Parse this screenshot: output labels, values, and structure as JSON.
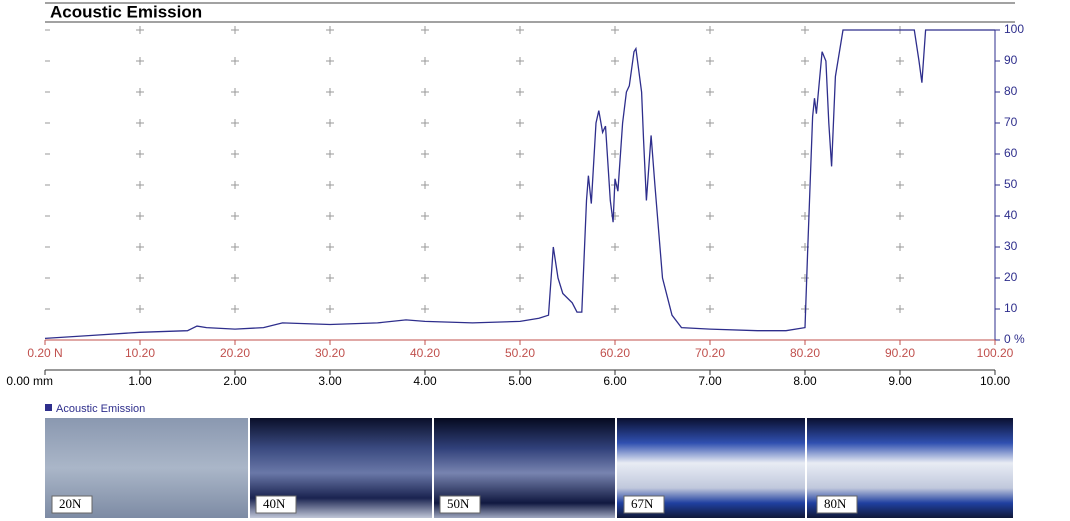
{
  "chart_data": {
    "type": "line",
    "title": "Acoustic Emission",
    "x": [
      0,
      0.5,
      1.0,
      1.5,
      1.6,
      1.7,
      2.0,
      2.3,
      2.5,
      3.0,
      3.5,
      3.8,
      4.0,
      4.5,
      5.0,
      5.2,
      5.3,
      5.35,
      5.4,
      5.45,
      5.55,
      5.6,
      5.65,
      5.7,
      5.72,
      5.75,
      5.8,
      5.83,
      5.87,
      5.9,
      5.95,
      5.98,
      6.0,
      6.03,
      6.08,
      6.12,
      6.15,
      6.2,
      6.22,
      6.28,
      6.3,
      6.33,
      6.38,
      6.42,
      6.5,
      6.6,
      6.7,
      7.0,
      7.5,
      7.8,
      8.0,
      8.03,
      8.08,
      8.1,
      8.12,
      8.18,
      8.22,
      8.25,
      8.28,
      8.32,
      8.4,
      9.15,
      9.2,
      9.23,
      9.27,
      10.0
    ],
    "series": [
      {
        "name": "Acoustic Emission",
        "color": "#2e2e8c",
        "values": [
          0.5,
          1.5,
          2.5,
          3,
          4.5,
          4,
          3.5,
          4,
          5.5,
          5,
          5.5,
          6.5,
          6,
          5.5,
          6,
          7,
          8,
          30,
          20,
          15,
          12,
          9,
          9,
          45,
          53,
          44,
          70,
          74,
          67,
          69,
          45,
          38,
          52,
          48,
          70,
          80,
          82,
          93,
          94,
          80,
          65,
          45,
          66,
          50,
          20,
          8,
          4,
          3.5,
          3,
          3,
          4,
          30,
          72,
          78,
          73,
          93,
          90,
          70,
          56,
          85,
          100,
          100,
          90,
          83,
          100,
          100
        ]
      }
    ],
    "xlim": [
      0,
      10
    ],
    "xticks": [
      {
        "value": 0,
        "label": "0.00 mm"
      },
      {
        "value": 1,
        "label": "1.00"
      },
      {
        "value": 2,
        "label": "2.00"
      },
      {
        "value": 3,
        "label": "3.00"
      },
      {
        "value": 4,
        "label": "4.00"
      },
      {
        "value": 5,
        "label": "5.00"
      },
      {
        "value": 6,
        "label": "6.00"
      },
      {
        "value": 7,
        "label": "7.00"
      },
      {
        "value": 8,
        "label": "8.00"
      },
      {
        "value": 9,
        "label": "9.00"
      },
      {
        "value": 10,
        "label": "10.00"
      }
    ],
    "x2lim": [
      0.2,
      100.2
    ],
    "x2ticks": [
      {
        "value": 0.2,
        "label": "0.20 N"
      },
      {
        "value": 10.2,
        "label": "10.20"
      },
      {
        "value": 20.2,
        "label": "20.20"
      },
      {
        "value": 30.2,
        "label": "30.20"
      },
      {
        "value": 40.2,
        "label": "40.20"
      },
      {
        "value": 50.2,
        "label": "50.20"
      },
      {
        "value": 60.2,
        "label": "60.20"
      },
      {
        "value": 70.2,
        "label": "70.20"
      },
      {
        "value": 80.2,
        "label": "80.20"
      },
      {
        "value": 90.2,
        "label": "90.20"
      },
      {
        "value": 100.2,
        "label": "100.20"
      }
    ],
    "ylim": [
      0,
      100
    ],
    "yticks": [
      {
        "value": 0,
        "label": "0 %"
      },
      10,
      20,
      30,
      40,
      50,
      60,
      70,
      80,
      90,
      100
    ],
    "grid": true
  },
  "micrographs": [
    {
      "label": "20N"
    },
    {
      "label": "40N"
    },
    {
      "label": "50N"
    },
    {
      "label": "67N"
    },
    {
      "label": "80N"
    }
  ]
}
